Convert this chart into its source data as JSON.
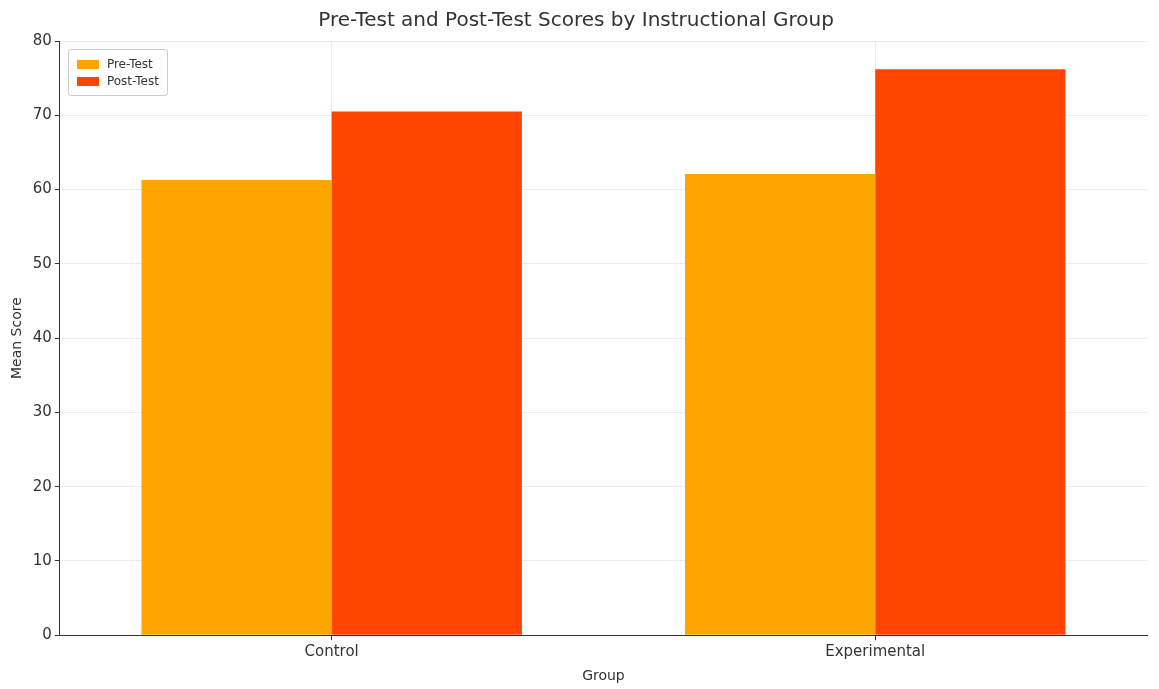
{
  "chart_data": {
    "type": "bar",
    "title": "Pre-Test and Post-Test Scores by Instructional Group",
    "xlabel": "Group",
    "ylabel": "Mean Score",
    "categories": [
      "Control",
      "Experimental"
    ],
    "series": [
      {
        "name": "Pre-Test",
        "color": "#ffa500",
        "values": [
          61.3,
          62.1
        ]
      },
      {
        "name": "Post-Test",
        "color": "#ff4500",
        "values": [
          70.5,
          76.2
        ]
      }
    ],
    "ylim": [
      0,
      80
    ],
    "yticks": [
      0,
      10,
      20,
      30,
      40,
      50,
      60,
      70,
      80
    ],
    "grid": true,
    "legend": "top left"
  }
}
